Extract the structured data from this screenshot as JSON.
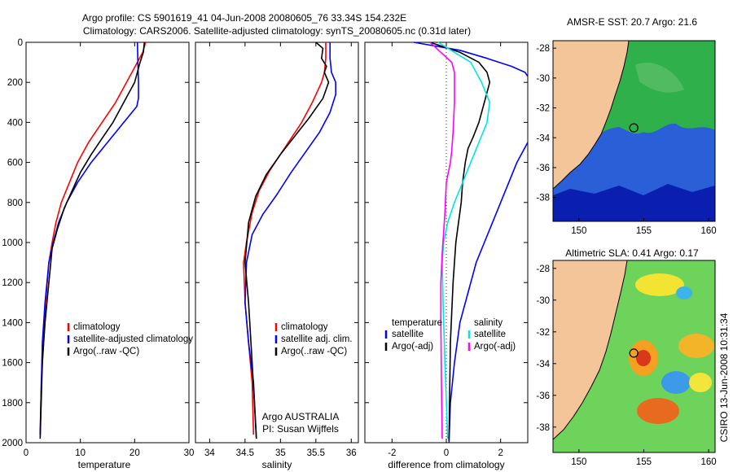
{
  "figure": {
    "title_line1": "Argo profile: CS 5901619_41 04-Jun-2008 20080605_76 33.34S 154.232E",
    "title_line2": "Climatology: CARS2006. Satellite-adjusted climatology: synTS_20080605.nc (0.31d later)",
    "credit_line1": "Argo AUSTRALIA",
    "credit_line2": "PI: Susan Wijffels",
    "stamp": "CSIRO 13-Jun-2008 10:31:34"
  },
  "colors": {
    "climatology": "#ff0000",
    "satellite": "#0000ff",
    "argo": "#000000",
    "salinity_satellite": "#00e5e5",
    "salinity_argo": "#ff00ff",
    "land": "#f5c59a"
  },
  "chart_data": [
    {
      "type": "line",
      "panel": "temperature",
      "xlabel": "temperature",
      "ylabel": "",
      "xlim": [
        0,
        30
      ],
      "ylim": [
        2000,
        0
      ],
      "xticks": [
        "0",
        "10",
        "20",
        "30"
      ],
      "yticks": [
        "0",
        "200",
        "400",
        "600",
        "800",
        "1000",
        "1200",
        "1400",
        "1600",
        "1800",
        "2000"
      ],
      "legend": {
        "placement": "lower-right",
        "entries": [
          "climatology",
          "satellite-adjusted climatology",
          "Argo(..raw -QC)"
        ]
      },
      "series": [
        {
          "name": "climatology",
          "x": [
            22.0,
            21.5,
            20.5,
            18.5,
            16.5,
            14.0,
            11.5,
            9.5,
            8.0,
            6.5,
            5.5,
            4.8,
            4.2,
            3.6,
            3.2,
            2.8,
            2.6
          ],
          "y": [
            0,
            50,
            100,
            200,
            300,
            400,
            500,
            600,
            700,
            800,
            900,
            1000,
            1100,
            1300,
            1500,
            1700,
            1960
          ]
        },
        {
          "name": "satellite-adjusted climatology",
          "x": [
            20.5,
            20.6,
            20.7,
            20.7,
            20.4,
            18.0,
            15.0,
            12.0,
            9.5,
            7.5,
            6.0,
            5.0,
            4.2,
            3.5,
            3.0,
            2.6
          ],
          "y": [
            0,
            100,
            200,
            280,
            320,
            400,
            500,
            600,
            700,
            800,
            900,
            1000,
            1100,
            1300,
            1500,
            1960
          ]
        },
        {
          "name": "Argo(..raw -QC)",
          "x": [
            21.8,
            21.6,
            21.0,
            20.0,
            18.0,
            16.0,
            14.0,
            12.0,
            10.0,
            8.5,
            7.0,
            5.8,
            4.8,
            4.2,
            3.5,
            3.0,
            2.6
          ],
          "y": [
            0,
            50,
            100,
            200,
            300,
            400,
            480,
            560,
            650,
            740,
            830,
            930,
            1030,
            1200,
            1400,
            1600,
            1980
          ]
        }
      ]
    },
    {
      "type": "line",
      "panel": "salinity",
      "xlabel": "salinity",
      "ylabel": "",
      "xlim": [
        33.8,
        36.1
      ],
      "ylim": [
        2000,
        0
      ],
      "xticks": [
        "34",
        "34.5",
        "35",
        "35.5",
        "36"
      ],
      "legend": {
        "placement": "lower-right",
        "entries": [
          "climatology",
          "satellite adj. clim.",
          "Argo(..raw -QC)"
        ]
      },
      "series": [
        {
          "name": "climatology",
          "x": [
            35.64,
            35.64,
            35.62,
            35.58,
            35.45,
            35.3,
            35.15,
            35.0,
            34.85,
            34.7,
            34.6,
            34.52,
            34.48,
            34.5,
            34.55,
            34.6,
            34.62
          ],
          "y": [
            0,
            80,
            150,
            200,
            300,
            400,
            480,
            560,
            640,
            740,
            850,
            1000,
            1100,
            1300,
            1500,
            1700,
            1960
          ]
        },
        {
          "name": "satellite adj. clim.",
          "x": [
            35.7,
            35.7,
            35.72,
            35.78,
            35.78,
            35.7,
            35.55,
            35.35,
            35.15,
            34.95,
            34.75,
            34.6,
            34.52,
            34.5,
            34.55,
            34.62,
            34.66
          ],
          "y": [
            0,
            80,
            150,
            200,
            260,
            350,
            450,
            550,
            650,
            760,
            860,
            960,
            1100,
            1300,
            1500,
            1700,
            1980
          ]
        },
        {
          "name": "Argo(..raw -QC)",
          "x": [
            35.5,
            35.6,
            35.58,
            35.65,
            35.62,
            35.68,
            35.6,
            35.4,
            35.2,
            35.0,
            34.8,
            34.65,
            34.55,
            34.5,
            34.55,
            34.6,
            34.66
          ],
          "y": [
            0,
            30,
            80,
            120,
            150,
            200,
            280,
            380,
            470,
            560,
            660,
            770,
            900,
            1100,
            1300,
            1600,
            1980
          ]
        }
      ]
    },
    {
      "type": "line",
      "panel": "difference",
      "xlabel": "difference from climatology",
      "ylabel": "",
      "xlim": [
        -3.0,
        3.0
      ],
      "ylim": [
        2000,
        0
      ],
      "xticks": [
        "-2",
        "0",
        "2"
      ],
      "legend": {
        "placement": "lower-center",
        "headers": [
          "temperature",
          "salinity"
        ],
        "entries": [
          "satellite",
          "Argo(-adj)",
          "satellite",
          "Argo(-adj)"
        ]
      },
      "series": [
        {
          "name": "temperature satellite",
          "x": [
            -1.2,
            0.5,
            1.5,
            2.4,
            2.9,
            3.0
          ],
          "y": [
            0,
            40,
            80,
            120,
            150,
            170
          ]
        },
        {
          "name": "temperature satellite",
          "x": [
            3.0,
            2.6,
            2.3,
            2.0,
            1.7,
            1.4,
            1.1,
            0.8,
            0.5,
            0.3,
            0.15,
            0.1
          ],
          "y": [
            500,
            600,
            700,
            800,
            900,
            1000,
            1100,
            1250,
            1400,
            1600,
            1800,
            2000
          ]
        },
        {
          "name": "temperature Argo(-adj)",
          "x": [
            -0.6,
            0.5,
            1.2,
            1.5,
            1.6,
            1.4,
            1.2,
            1.0,
            0.8,
            0.7,
            0.6,
            0.55,
            0.45,
            0.35,
            0.25,
            0.15,
            0.1
          ],
          "y": [
            0,
            50,
            100,
            150,
            200,
            300,
            400,
            470,
            530,
            600,
            700,
            800,
            900,
            1000,
            1200,
            1500,
            1990
          ]
        },
        {
          "name": "salinity satellite",
          "x": [
            -0.3,
            0.3,
            0.9,
            1.3,
            1.6,
            1.5,
            1.2,
            0.9,
            0.6,
            0.3,
            0.05,
            -0.1,
            -0.15,
            -0.12,
            -0.05,
            0.05
          ],
          "y": [
            0,
            50,
            100,
            200,
            300,
            400,
            500,
            600,
            700,
            800,
            900,
            1000,
            1100,
            1300,
            1600,
            1980
          ]
        },
        {
          "name": "salinity Argo(-adj)",
          "x": [
            -0.6,
            -0.2,
            0.2,
            0.3,
            0.3,
            0.25,
            0.2,
            0.15,
            0.0,
            -0.05,
            -0.1,
            -0.15,
            -0.2,
            -0.2,
            -0.18,
            -0.15
          ],
          "y": [
            0,
            50,
            100,
            150,
            300,
            450,
            540,
            600,
            700,
            850,
            950,
            1050,
            1200,
            1400,
            1700,
            1980
          ]
        }
      ]
    },
    {
      "type": "heatmap",
      "panel": "map_top",
      "title": "AMSR-E SST: 20.7  Argo: 21.6",
      "xlim": [
        148,
        160.5
      ],
      "ylim": [
        -39.6,
        -27.5
      ],
      "xticks": [
        "150",
        "155",
        "160"
      ],
      "yticks": [
        "-28",
        "-30",
        "-32",
        "-34",
        "-36",
        "-38"
      ],
      "float_position": [
        154.232,
        -33.34
      ]
    },
    {
      "type": "heatmap",
      "panel": "map_bottom",
      "title": "Altimetric SLA: 0.41  Argo: 0.17",
      "xlim": [
        148,
        160.5
      ],
      "ylim": [
        -39.6,
        -27.5
      ],
      "xticks": [
        "150",
        "155",
        "160"
      ],
      "yticks": [
        "-28",
        "-30",
        "-32",
        "-34",
        "-36",
        "-38"
      ],
      "float_position": [
        154.232,
        -33.34
      ]
    }
  ]
}
